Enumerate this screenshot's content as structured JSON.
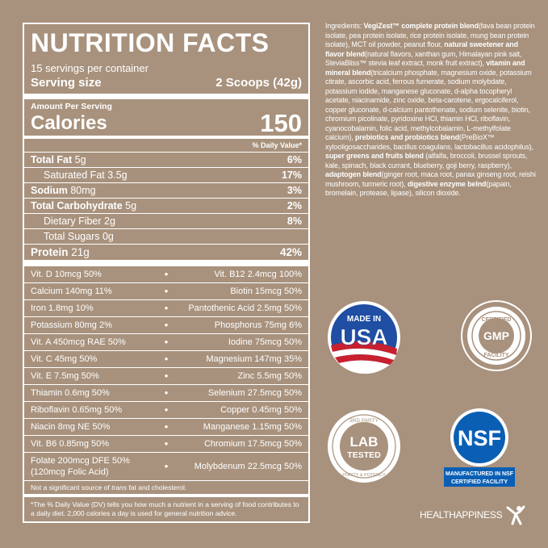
{
  "panel": {
    "title": "NUTRITION FACTS",
    "servings": "15 servings per container",
    "serving_size_label": "Serving size",
    "serving_size_value": "2 Scoops (42g)",
    "amount_per_serving": "Amount Per Serving",
    "calories_label": "Calories",
    "calories_value": "150",
    "dv_header": "% Daily Value*",
    "nutrients": [
      {
        "name": "Total Fat",
        "amount": "5g",
        "dv": "6%"
      },
      {
        "name": "Saturated Fat",
        "amount": "3.5g",
        "dv": "17%"
      },
      {
        "name": "Sodium",
        "amount": "80mg",
        "dv": "3%"
      },
      {
        "name": "Total Carbohydrate",
        "amount": "5g",
        "dv": "2%"
      },
      {
        "name": "Dietary Fiber",
        "amount": "2g",
        "dv": "8%"
      },
      {
        "name": "Total Sugars",
        "amount": "0g",
        "dv": ""
      },
      {
        "name": "Protein",
        "amount": "21g",
        "dv": "42%"
      }
    ],
    "vitamins": [
      {
        "left": "Vit. D 10mcg 50%",
        "right": "Vit. B12 2.4mcg 100%"
      },
      {
        "left": "Calcium 140mg 11%",
        "right": "Biotin 15mcg 50%"
      },
      {
        "left": "Iron 1.8mg 10%",
        "right": "Pantothenic Acid 2.5mg 50%"
      },
      {
        "left": "Potassium 80mg 2%",
        "right": "Phosphorus 75mg 6%"
      },
      {
        "left": "Vit. A 450mcg RAE 50%",
        "right": "Iodine 75mcg 50%"
      },
      {
        "left": "Vit. C 45mg 50%",
        "right": "Magnesium 147mg 35%"
      },
      {
        "left": "Vit. E 7.5mg 50%",
        "right": "Zinc 5.5mg 50%"
      },
      {
        "left": "Thiamin 0.6mg 50%",
        "right": "Selenium 27.5mcg 50%"
      },
      {
        "left": "Riboflavin 0.65mg 50%",
        "right": "Copper 0.45mg 50%"
      },
      {
        "left": "Niacin 8mg NE 50%",
        "right": "Manganese 1.15mg 50%"
      },
      {
        "left": "Vit. B6 0.85mg 50%",
        "right": "Chromium 17.5mcg 50%"
      }
    ],
    "vitamin_last_left_1": "Folate 200mcg DFE 50%",
    "vitamin_last_left_2": "(120mcg Folic Acid)",
    "vitamin_last_right": "Molybdenum 22.5mcg 50%",
    "dot": "●",
    "trans_note_a": "Not a significant source of ",
    "trans_note_b": "trans",
    "trans_note_c": " fat and cholesterol.",
    "footnote": "*The % Daily Value (DV) tells you how much a nutrient in a serving of food contributes to a daily diet. 2,000 calories a day is used for general nutrition advice."
  },
  "ingredients": [
    {
      "t": "Ingredients: ",
      "b": false
    },
    {
      "t": "VegiZest™ complete protein blend",
      "b": true
    },
    {
      "t": "(fava bean protein isolate, pea protein isolate, rice protein isolate, mung bean protein isolate), MCT oil powder, peanut flour, ",
      "b": false
    },
    {
      "t": "natural sweetener and flavor blend",
      "b": true
    },
    {
      "t": "(natural flavors, xanthan gum, Himalayan pink salt, SteviaBliss™ stevia leaf extract, monk fruit extract), ",
      "b": false
    },
    {
      "t": "vitamin and mineral blend",
      "b": true
    },
    {
      "t": "(tricalcium phosphate, magnesium oxide, potassium citrate, ascorbic acid, ferrous fumerate, sodium molybdate, potassium iodide, manganese gluconate, d-alpha tocopheryl acetate, niacinamide, zinc oxide, beta-carotene, ergocalciferol, copper gluconate, d-calcium pantothenate, sodium selenite, biotin, chromium picolinate, pyridoxine HCl, thiamin HCl, riboflavin, cyanocobalamin, folic acid, methylcobalamin, L-methylfolate calcium), ",
      "b": false
    },
    {
      "t": "prebiotics and probiotics blend",
      "b": true
    },
    {
      "t": "(PreBioX™ xylooligosaccharides, bacillus coagulans, lactobacillus acidophilus), ",
      "b": false
    },
    {
      "t": "super greens and fruits blend",
      "b": true
    },
    {
      "t": " (alfalfa, broccoli, brussel sprouts, kale, spinach, black currant, blueberry, goji berry, raspberry), ",
      "b": false
    },
    {
      "t": "adaptogen blend",
      "b": true
    },
    {
      "t": "(ginger root, maca root, panax ginseng root, reishi mushroom, turmeric root), ",
      "b": false
    },
    {
      "t": "digestive enzyme belnd",
      "b": true
    },
    {
      "t": "(papain, bromelain, protease, lipase), silicon dioxide.",
      "b": false
    }
  ],
  "badges": {
    "usa_top": "MADE IN",
    "usa_main": "USA",
    "gmp_top": "CERTIFIED",
    "gmp_main": "GMP",
    "gmp_bottom": "FACILITY",
    "lab_top": "3RD PARTY",
    "lab_main_1": "LAB",
    "lab_main_2": "TESTED",
    "lab_bottom": "PURITY & POTENCY",
    "nsf_main": "NSF",
    "nsf_caption_1": "MANUFACTURED IN NSF",
    "nsf_caption_2": "CERTIFIED FACILITY"
  },
  "brand": {
    "name": "HEALTHAPPINESS"
  },
  "colors": {
    "background": "#a8927d",
    "usa_blue": "#1f4ea3",
    "usa_red": "#c8202f",
    "nsf_blue": "#0a5fb4"
  }
}
